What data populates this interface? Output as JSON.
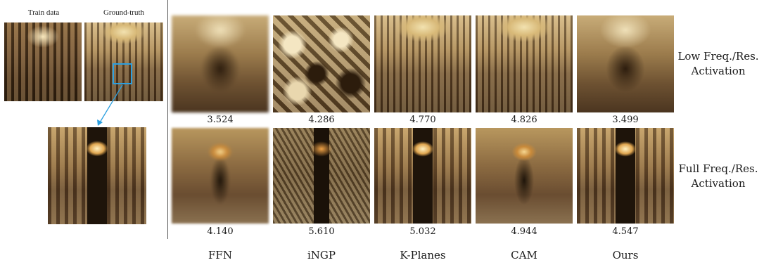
{
  "left_panel": {
    "train_label": "Train data",
    "gt_label": "Ground-truth"
  },
  "methods": [
    "FFN",
    "iNGP",
    "K-Planes",
    "CAM",
    "Ours"
  ],
  "rows": [
    {
      "label_line1": "Low Freq./Res.",
      "label_line2": "Activation",
      "scores": [
        "3.524",
        "4.286",
        "4.770",
        "4.826",
        "3.499"
      ]
    },
    {
      "label_line1": "Full Freq./Res.",
      "label_line2": "Activation",
      "scores": [
        "4.140",
        "5.610",
        "5.032",
        "4.944",
        "4.547"
      ]
    }
  ],
  "colors": {
    "highlight_box": "#2b9fe0",
    "divider": "#555555"
  }
}
